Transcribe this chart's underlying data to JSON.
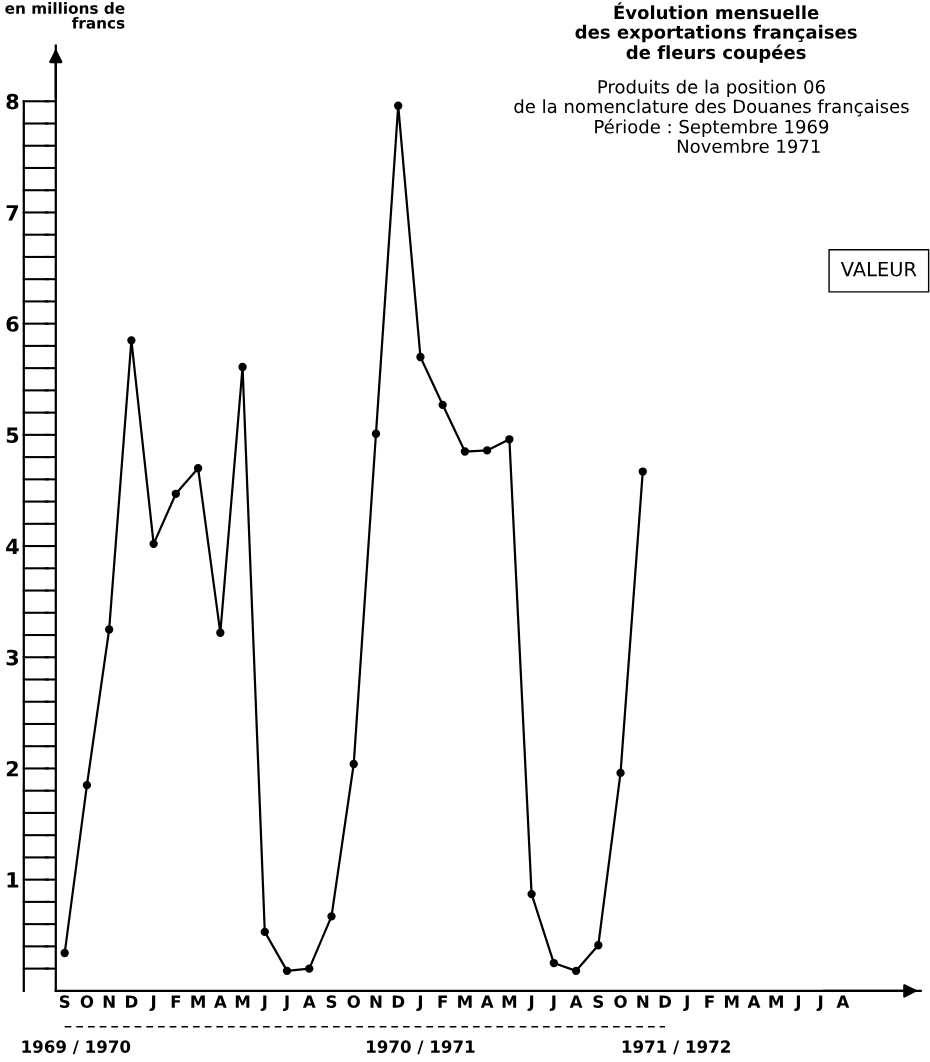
{
  "chart_data": {
    "type": "line",
    "title": "Évolution mensuelle\ndes exportations françaises\nde fleurs coupées",
    "subtitle": "Produits de la position 06\nde la nomenclature des Douanes françaises\nPériode : Septembre 1969\n             Novembre 1971",
    "ylabel": "en millions de\nfrancs",
    "categories": [
      "S",
      "O",
      "N",
      "D",
      "J",
      "F",
      "M",
      "A",
      "M",
      "J",
      "J",
      "A",
      "S",
      "O",
      "N",
      "D",
      "J",
      "F",
      "M",
      "A",
      "M",
      "J",
      "J",
      "A",
      "S",
      "O",
      "N",
      "D",
      "J",
      "F",
      "M",
      "A",
      "M",
      "J",
      "J",
      "A"
    ],
    "series": [
      {
        "color": "#000000",
        "values": [
          0.34,
          1.85,
          3.25,
          5.85,
          4.02,
          4.47,
          4.7,
          3.22,
          5.61,
          0.53,
          0.18,
          0.2,
          0.67,
          2.04,
          5.01,
          7.96,
          5.7,
          5.27,
          4.85,
          4.86,
          4.96,
          0.87,
          0.25,
          0.18,
          0.41,
          1.96,
          4.67,
          null,
          null,
          null,
          null,
          null,
          null,
          null,
          null,
          null
        ]
      }
    ],
    "ylim": [
      0,
      8.5
    ],
    "yticks": [
      {
        "value": 0.2,
        "label": null
      },
      {
        "value": 0.4,
        "label": null
      },
      {
        "value": 0.6,
        "label": null
      },
      {
        "value": 0.8,
        "label": null
      },
      1,
      {
        "value": 1.2,
        "label": null
      },
      {
        "value": 1.4,
        "label": null
      },
      {
        "value": 1.6,
        "label": null
      },
      {
        "value": 1.8,
        "label": null
      },
      2,
      {
        "value": 2.2,
        "label": null
      },
      {
        "value": 2.4,
        "label": null
      },
      {
        "value": 2.6,
        "label": null
      },
      {
        "value": 2.8,
        "label": null
      },
      3,
      {
        "value": 3.2,
        "label": null
      },
      {
        "value": 3.4,
        "label": null
      },
      {
        "value": 3.6,
        "label": null
      },
      {
        "value": 3.8,
        "label": null
      },
      4,
      {
        "value": 4.2,
        "label": null
      },
      {
        "value": 4.4,
        "label": null
      },
      {
        "value": 4.6,
        "label": null
      },
      {
        "value": 4.8,
        "label": null
      },
      5,
      {
        "value": 5.2,
        "label": null
      },
      {
        "value": 5.4,
        "label": null
      },
      {
        "value": 5.6,
        "label": null
      },
      {
        "value": 5.8,
        "label": null
      },
      6,
      {
        "value": 6.2,
        "label": null
      },
      {
        "value": 6.4,
        "label": null
      },
      {
        "value": 6.6,
        "label": null
      },
      {
        "value": 6.8,
        "label": null
      },
      7,
      {
        "value": 7.2,
        "label": null
      },
      {
        "value": 7.4,
        "label": null
      },
      {
        "value": 7.6,
        "label": null
      },
      {
        "value": 7.8,
        "label": null
      },
      8
    ],
    "annotations": [
      "VALEUR",
      "1969 / 1970",
      "1970 / 1971",
      "1971 / 1972"
    ],
    "marker": "circle",
    "line_style": "solid",
    "grid": false,
    "legend": false
  }
}
